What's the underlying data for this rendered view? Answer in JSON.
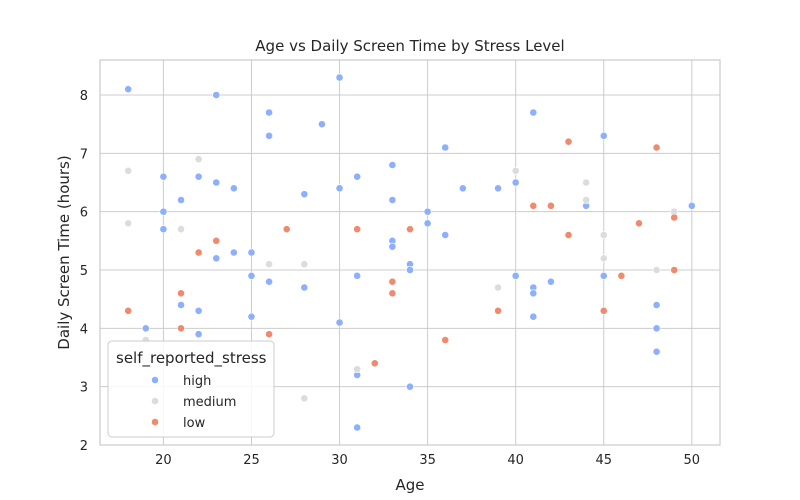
{
  "chart_data": {
    "type": "scatter",
    "title": "Age vs Daily Screen Time by Stress Level",
    "xlabel": "Age",
    "ylabel": "Daily Screen Time (hours)",
    "xlim": [
      16.4,
      51.6
    ],
    "ylim": [
      2.0,
      8.6
    ],
    "x_ticks": [
      20,
      25,
      30,
      35,
      40,
      45,
      50
    ],
    "y_ticks": [
      2,
      3,
      4,
      5,
      6,
      7,
      8
    ],
    "grid": true,
    "legend": {
      "title": "self_reported_stress",
      "placement": "lower-left"
    },
    "series": [
      {
        "name": "high",
        "color": "#8caffe",
        "points": [
          [
            18,
            8.1
          ],
          [
            19,
            4.0
          ],
          [
            20,
            6.6
          ],
          [
            20,
            6.0
          ],
          [
            20,
            5.7
          ],
          [
            21,
            6.2
          ],
          [
            21,
            4.4
          ],
          [
            22,
            6.6
          ],
          [
            22,
            4.3
          ],
          [
            22,
            3.9
          ],
          [
            23,
            8.0
          ],
          [
            23,
            6.5
          ],
          [
            23,
            5.2
          ],
          [
            24,
            6.4
          ],
          [
            24,
            5.3
          ],
          [
            25,
            5.3
          ],
          [
            25,
            4.9
          ],
          [
            25,
            4.2
          ],
          [
            26,
            7.7
          ],
          [
            26,
            7.3
          ],
          [
            26,
            4.8
          ],
          [
            28,
            6.3
          ],
          [
            28,
            4.7
          ],
          [
            29,
            7.5
          ],
          [
            30,
            8.3
          ],
          [
            30,
            6.4
          ],
          [
            30,
            4.1
          ],
          [
            31,
            6.6
          ],
          [
            31,
            4.9
          ],
          [
            31,
            3.2
          ],
          [
            31,
            2.3
          ],
          [
            33,
            6.8
          ],
          [
            33,
            6.2
          ],
          [
            33,
            5.5
          ],
          [
            33,
            5.4
          ],
          [
            34,
            5.1
          ],
          [
            34,
            5.0
          ],
          [
            34,
            3.0
          ],
          [
            35,
            6.0
          ],
          [
            35,
            5.8
          ],
          [
            36,
            7.1
          ],
          [
            36,
            5.6
          ],
          [
            37,
            6.4
          ],
          [
            39,
            6.4
          ],
          [
            40,
            6.5
          ],
          [
            40,
            4.9
          ],
          [
            41,
            7.7
          ],
          [
            41,
            4.7
          ],
          [
            41,
            4.6
          ],
          [
            41,
            4.2
          ],
          [
            42,
            4.8
          ],
          [
            44,
            6.1
          ],
          [
            45,
            7.3
          ],
          [
            45,
            4.9
          ],
          [
            48,
            4.4
          ],
          [
            48,
            4.0
          ],
          [
            48,
            3.6
          ],
          [
            50,
            6.1
          ]
        ]
      },
      {
        "name": "medium",
        "color": "#dddcdc",
        "points": [
          [
            18,
            6.7
          ],
          [
            18,
            5.8
          ],
          [
            19,
            3.8
          ],
          [
            21,
            5.7
          ],
          [
            22,
            6.9
          ],
          [
            26,
            5.1
          ],
          [
            28,
            5.1
          ],
          [
            28,
            2.8
          ],
          [
            31,
            3.3
          ],
          [
            39,
            4.7
          ],
          [
            40,
            6.7
          ],
          [
            44,
            6.5
          ],
          [
            44,
            6.2
          ],
          [
            45,
            5.6
          ],
          [
            45,
            5.2
          ],
          [
            48,
            5.0
          ],
          [
            49,
            6.0
          ]
        ]
      },
      {
        "name": "low",
        "color": "#f08a6c",
        "points": [
          [
            18,
            4.3
          ],
          [
            21,
            4.6
          ],
          [
            21,
            4.0
          ],
          [
            22,
            5.3
          ],
          [
            23,
            5.5
          ],
          [
            26,
            3.9
          ],
          [
            27,
            5.7
          ],
          [
            31,
            5.7
          ],
          [
            32,
            3.4
          ],
          [
            33,
            4.8
          ],
          [
            33,
            4.6
          ],
          [
            34,
            5.7
          ],
          [
            36,
            3.8
          ],
          [
            39,
            4.3
          ],
          [
            41,
            6.1
          ],
          [
            42,
            6.1
          ],
          [
            43,
            7.2
          ],
          [
            43,
            5.6
          ],
          [
            45,
            4.3
          ],
          [
            46,
            4.9
          ],
          [
            47,
            5.8
          ],
          [
            48,
            7.1
          ],
          [
            49,
            5.9
          ],
          [
            49,
            5.0
          ]
        ]
      }
    ]
  }
}
